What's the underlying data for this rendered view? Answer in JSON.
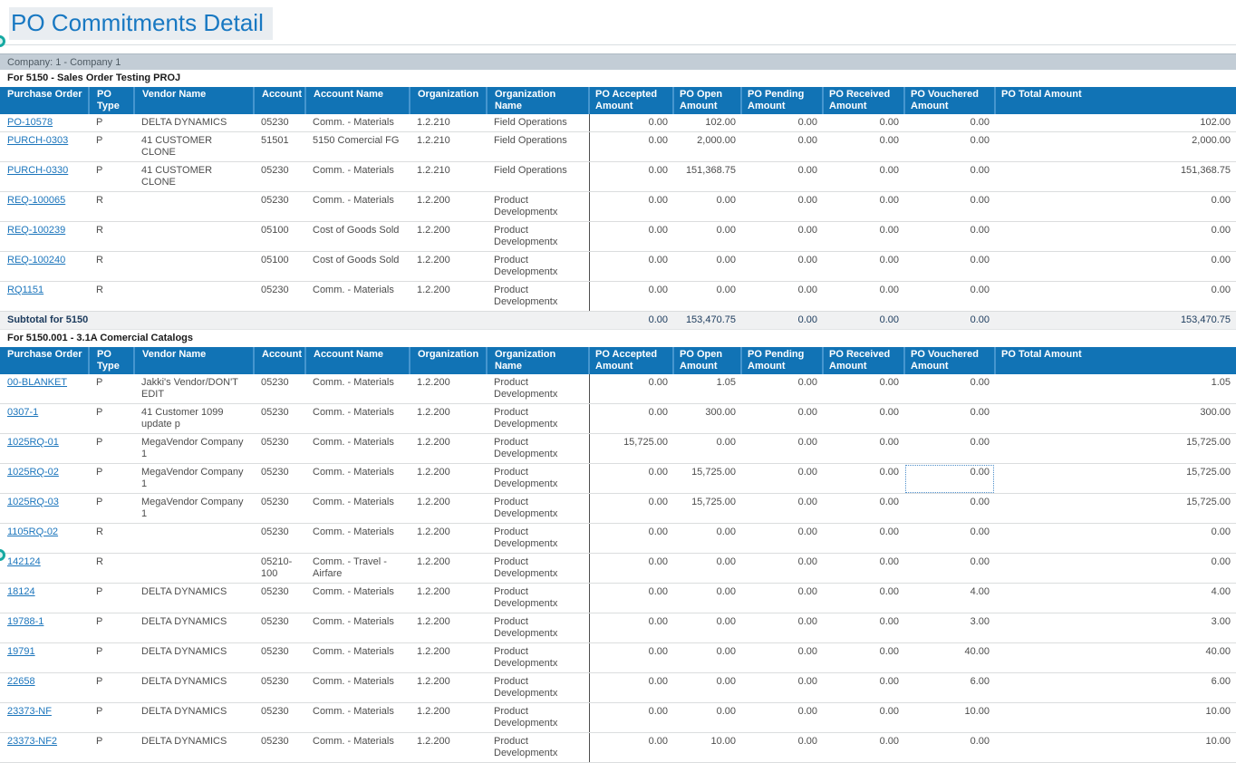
{
  "page_title": "PO Commitments Detail",
  "company_bar": "Company: 1 - Company 1",
  "colors": {
    "header_blue": "#1173B5",
    "title_blue": "#1878C2",
    "link_blue": "#1B75BC",
    "company_bar_gray": "#C3CDD6",
    "subtotal_navy": "#1B3A5C",
    "marker_teal": "#15A9A2"
  },
  "icons": [
    {
      "name": "annotation-marker-icon",
      "shape": "teal-circle"
    }
  ],
  "table_columns": [
    "Purchase Order",
    "PO Type",
    "Vendor Name",
    "Account",
    "Account Name",
    "Organization",
    "Organization Name",
    "PO Accepted Amount",
    "PO Open Amount",
    "PO Pending Amount",
    "PO Received Amount",
    "PO Vouchered Amount",
    "PO Total Amount"
  ],
  "sections": [
    {
      "heading": "For 5150 -  Sales Order Testing PROJ",
      "rows": [
        {
          "po": "PO-10578",
          "type": "P",
          "vendor": "DELTA DYNAMICS",
          "account": "05230",
          "account_name": "Comm. - Materials",
          "org": "1.2.210",
          "org_name": "Field Operations",
          "amounts": [
            "0.00",
            "102.00",
            "0.00",
            "0.00",
            "0.00",
            "102.00"
          ]
        },
        {
          "po": "PURCH-0303",
          "type": "P",
          "vendor": "41 CUSTOMER CLONE",
          "account": "51501",
          "account_name": "5150 Comercial FG",
          "org": "1.2.210",
          "org_name": "Field Operations",
          "amounts": [
            "0.00",
            "2,000.00",
            "0.00",
            "0.00",
            "0.00",
            "2,000.00"
          ]
        },
        {
          "po": "PURCH-0330",
          "type": "P",
          "vendor": "41 CUSTOMER CLONE",
          "account": "05230",
          "account_name": "Comm. - Materials",
          "org": "1.2.210",
          "org_name": "Field Operations",
          "amounts": [
            "0.00",
            "151,368.75",
            "0.00",
            "0.00",
            "0.00",
            "151,368.75"
          ]
        },
        {
          "po": "REQ-100065",
          "type": "R",
          "vendor": "",
          "account": "05230",
          "account_name": "Comm. - Materials",
          "org": "1.2.200",
          "org_name": "Product Developmentx",
          "amounts": [
            "0.00",
            "0.00",
            "0.00",
            "0.00",
            "0.00",
            "0.00"
          ]
        },
        {
          "po": "REQ-100239",
          "type": "R",
          "vendor": "",
          "account": "05100",
          "account_name": "Cost of Goods Sold",
          "org": "1.2.200",
          "org_name": "Product Developmentx",
          "amounts": [
            "0.00",
            "0.00",
            "0.00",
            "0.00",
            "0.00",
            "0.00"
          ]
        },
        {
          "po": "REQ-100240",
          "type": "R",
          "vendor": "",
          "account": "05100",
          "account_name": "Cost of Goods Sold",
          "org": "1.2.200",
          "org_name": "Product Developmentx",
          "amounts": [
            "0.00",
            "0.00",
            "0.00",
            "0.00",
            "0.00",
            "0.00"
          ]
        },
        {
          "po": "RQ1151",
          "type": "R",
          "vendor": "",
          "account": "05230",
          "account_name": "Comm. - Materials",
          "org": "1.2.200",
          "org_name": "Product Developmentx",
          "amounts": [
            "0.00",
            "0.00",
            "0.00",
            "0.00",
            "0.00",
            "0.00"
          ]
        }
      ],
      "subtotal": {
        "label": "Subtotal for 5150",
        "amounts": [
          "0.00",
          "153,470.75",
          "0.00",
          "0.00",
          "0.00",
          "153,470.75"
        ]
      }
    },
    {
      "heading": "For 5150.001 -  3.1A Comercial Catalogs",
      "rows": [
        {
          "po": "00-BLANKET",
          "type": "P",
          "vendor": "Jakki's Vendor/DON'T EDIT",
          "account": "05230",
          "account_name": "Comm. - Materials",
          "org": "1.2.200",
          "org_name": "Product Developmentx",
          "amounts": [
            "0.00",
            "1.05",
            "0.00",
            "0.00",
            "0.00",
            "1.05"
          ]
        },
        {
          "po": "0307-1",
          "type": "P",
          "vendor": "41 Customer 1099 update p",
          "account": "05230",
          "account_name": "Comm. - Materials",
          "org": "1.2.200",
          "org_name": "Product Developmentx",
          "amounts": [
            "0.00",
            "300.00",
            "0.00",
            "0.00",
            "0.00",
            "300.00"
          ]
        },
        {
          "po": "1025RQ-01",
          "type": "P",
          "vendor": "MegaVendor Company 1",
          "account": "05230",
          "account_name": "Comm. - Materials",
          "org": "1.2.200",
          "org_name": "Product Developmentx",
          "amounts": [
            "15,725.00",
            "0.00",
            "0.00",
            "0.00",
            "0.00",
            "15,725.00"
          ]
        },
        {
          "po": "1025RQ-02",
          "type": "P",
          "vendor": "MegaVendor Company 1",
          "account": "05230",
          "account_name": "Comm. - Materials",
          "org": "1.2.200",
          "org_name": "Product Developmentx",
          "amounts": [
            "0.00",
            "15,725.00",
            "0.00",
            "0.00",
            "0.00",
            "15,725.00"
          ],
          "focused_amount_index": 4
        },
        {
          "po": "1025RQ-03",
          "type": "P",
          "vendor": "MegaVendor Company 1",
          "account": "05230",
          "account_name": "Comm. - Materials",
          "org": "1.2.200",
          "org_name": "Product Developmentx",
          "amounts": [
            "0.00",
            "15,725.00",
            "0.00",
            "0.00",
            "0.00",
            "15,725.00"
          ]
        },
        {
          "po": "1105RQ-02",
          "type": "R",
          "vendor": "",
          "account": "05230",
          "account_name": "Comm. - Materials",
          "org": "1.2.200",
          "org_name": "Product Developmentx",
          "amounts": [
            "0.00",
            "0.00",
            "0.00",
            "0.00",
            "0.00",
            "0.00"
          ]
        },
        {
          "po": "142124",
          "type": "R",
          "vendor": "",
          "account": "05210-100",
          "account_name": "Comm. - Travel - Airfare",
          "org": "1.2.200",
          "org_name": "Product Developmentx",
          "amounts": [
            "0.00",
            "0.00",
            "0.00",
            "0.00",
            "0.00",
            "0.00"
          ]
        },
        {
          "po": "18124",
          "type": "P",
          "vendor": "DELTA DYNAMICS",
          "account": "05230",
          "account_name": "Comm. - Materials",
          "org": "1.2.200",
          "org_name": "Product Developmentx",
          "amounts": [
            "0.00",
            "0.00",
            "0.00",
            "0.00",
            "4.00",
            "4.00"
          ]
        },
        {
          "po": "19788-1",
          "type": "P",
          "vendor": "DELTA DYNAMICS",
          "account": "05230",
          "account_name": "Comm. - Materials",
          "org": "1.2.200",
          "org_name": "Product Developmentx",
          "amounts": [
            "0.00",
            "0.00",
            "0.00",
            "0.00",
            "3.00",
            "3.00"
          ]
        },
        {
          "po": "19791",
          "type": "P",
          "vendor": "DELTA DYNAMICS",
          "account": "05230",
          "account_name": "Comm. - Materials",
          "org": "1.2.200",
          "org_name": "Product Developmentx",
          "amounts": [
            "0.00",
            "0.00",
            "0.00",
            "0.00",
            "40.00",
            "40.00"
          ]
        },
        {
          "po": "22658",
          "type": "P",
          "vendor": "DELTA DYNAMICS",
          "account": "05230",
          "account_name": "Comm. - Materials",
          "org": "1.2.200",
          "org_name": "Product Developmentx",
          "amounts": [
            "0.00",
            "0.00",
            "0.00",
            "0.00",
            "6.00",
            "6.00"
          ]
        },
        {
          "po": "23373-NF",
          "type": "P",
          "vendor": "DELTA DYNAMICS",
          "account": "05230",
          "account_name": "Comm. - Materials",
          "org": "1.2.200",
          "org_name": "Product Developmentx",
          "amounts": [
            "0.00",
            "0.00",
            "0.00",
            "0.00",
            "10.00",
            "10.00"
          ]
        },
        {
          "po": "23373-NF2",
          "type": "P",
          "vendor": "DELTA DYNAMICS",
          "account": "05230",
          "account_name": "Comm. - Materials",
          "org": "1.2.200",
          "org_name": "Product Developmentx",
          "amounts": [
            "0.00",
            "10.00",
            "0.00",
            "0.00",
            "0.00",
            "10.00"
          ]
        }
      ]
    }
  ]
}
